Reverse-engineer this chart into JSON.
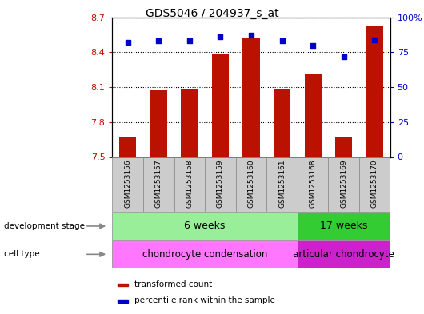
{
  "title": "GDS5046 / 204937_s_at",
  "samples": [
    "GSM1253156",
    "GSM1253157",
    "GSM1253158",
    "GSM1253159",
    "GSM1253160",
    "GSM1253161",
    "GSM1253168",
    "GSM1253169",
    "GSM1253170"
  ],
  "transformed_count": [
    7.67,
    8.07,
    8.08,
    8.39,
    8.52,
    8.09,
    8.22,
    7.67,
    8.63
  ],
  "percentile_rank": [
    82,
    83,
    83,
    86,
    87,
    83,
    80,
    72,
    84
  ],
  "ylim_left": [
    7.5,
    8.7
  ],
  "ylim_right": [
    0,
    100
  ],
  "yticks_left": [
    7.5,
    7.8,
    8.1,
    8.4,
    8.7
  ],
  "yticks_right": [
    0,
    25,
    50,
    75,
    100
  ],
  "ytick_labels_left": [
    "7.5",
    "7.8",
    "8.1",
    "8.4",
    "8.7"
  ],
  "ytick_labels_right": [
    "0",
    "25",
    "50",
    "75",
    "100%"
  ],
  "bar_color": "#bb1100",
  "dot_color": "#0000cc",
  "bar_width": 0.55,
  "dev_6w_count": 6,
  "dev_17w_count": 3,
  "color_6w_light": "#99ee99",
  "color_17w": "#33cc33",
  "color_cell_6w": "#ff77ff",
  "color_cell_17w": "#cc22cc",
  "tick_box_color": "#cccccc",
  "legend_bar_label": "transformed count",
  "legend_dot_label": "percentile rank within the sample",
  "dev_stage_6w": "6 weeks",
  "dev_stage_17w": "17 weeks",
  "cell_type_6w": "chondrocyte condensation",
  "cell_type_17w": "articular chondrocyte",
  "development_stage_label": "development stage",
  "cell_type_label": "cell type"
}
